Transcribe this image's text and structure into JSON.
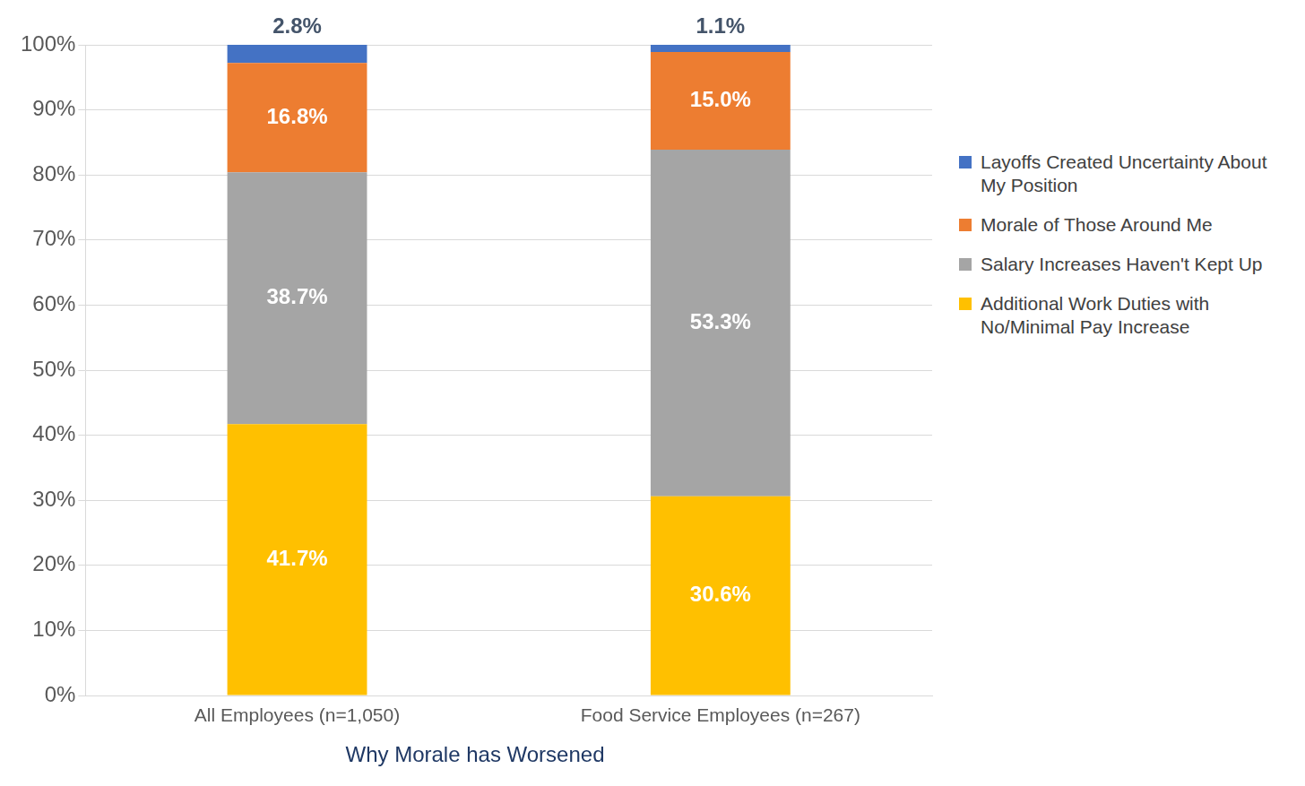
{
  "chart_data": {
    "type": "bar",
    "title": "Why Morale has Worsened",
    "categories": [
      "All Employees (n=1,050)",
      "Food Service Employees (n=267)"
    ],
    "series": [
      {
        "name": "Additional Work Duties with No/Minimal Pay Increase",
        "color": "#ffc000",
        "values": [
          41.7,
          30.6
        ],
        "value_labels": [
          "41.7%",
          "30.6%"
        ]
      },
      {
        "name": "Salary Increases Haven't Kept Up",
        "color": "#a5a5a5",
        "values": [
          38.7,
          53.3
        ],
        "value_labels": [
          "38.7%",
          "53.3%"
        ]
      },
      {
        "name": "Morale of Those Around Me",
        "color": "#ed7d31",
        "values": [
          16.8,
          15.0
        ],
        "value_labels": [
          "16.8%",
          "15.0%"
        ]
      },
      {
        "name": "Layoffs Created Uncertainty About My Position",
        "color": "#4472c4",
        "values": [
          2.8,
          1.1
        ],
        "value_labels": [
          "2.8%",
          "1.1%"
        ]
      }
    ],
    "ylim": [
      0,
      100
    ],
    "yticks": [
      {
        "value": 0,
        "label": "0%"
      },
      {
        "value": 10,
        "label": "10%"
      },
      {
        "value": 20,
        "label": "20%"
      },
      {
        "value": 30,
        "label": "30%"
      },
      {
        "value": 40,
        "label": "40%"
      },
      {
        "value": 50,
        "label": "50%"
      },
      {
        "value": 60,
        "label": "60%"
      },
      {
        "value": 70,
        "label": "70%"
      },
      {
        "value": 80,
        "label": "80%"
      },
      {
        "value": 90,
        "label": "90%"
      },
      {
        "value": 100,
        "label": "100%"
      }
    ],
    "stacked": true,
    "grid": true,
    "legend": "right",
    "data_labels": true
  }
}
